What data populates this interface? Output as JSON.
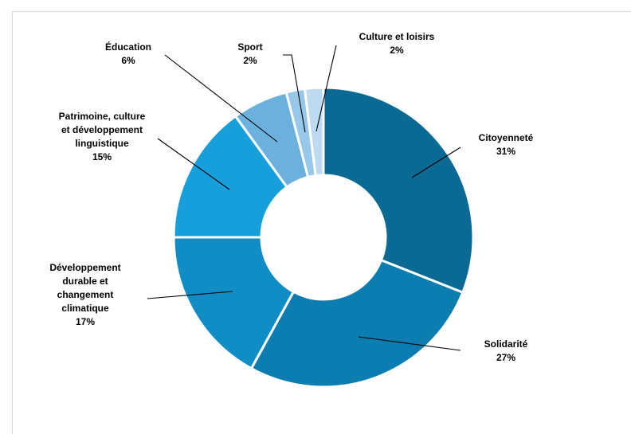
{
  "chart_data": {
    "type": "donut",
    "title": "",
    "series": [
      {
        "label": "Citoyenneté",
        "label_lines": [
          "Citoyenneté"
        ],
        "value": 31,
        "pct_text": "31%",
        "color": "#0a6a94"
      },
      {
        "label": "Solidarité",
        "label_lines": [
          "Solidarité"
        ],
        "value": 27,
        "pct_text": "27%",
        "color": "#0b7db1"
      },
      {
        "label": "Développement durable et changement climatique",
        "label_lines": [
          "Développement",
          "durable et",
          "changement",
          "climatique"
        ],
        "value": 17,
        "pct_text": "17%",
        "color": "#118dc6"
      },
      {
        "label": "Patrimoine, culture et développement linguistique",
        "label_lines": [
          "Patrimoine, culture",
          "et développement",
          "linguistique"
        ],
        "value": 15,
        "pct_text": "15%",
        "color": "#169fdb"
      },
      {
        "label": "Éducation",
        "label_lines": [
          "Éducation"
        ],
        "value": 6,
        "pct_text": "6%",
        "color": "#6cb0de"
      },
      {
        "label": "Sport",
        "label_lines": [
          "Sport"
        ],
        "value": 2,
        "pct_text": "2%",
        "color": "#97c8ea"
      },
      {
        "label": "Culture et loisirs",
        "label_lines": [
          "Culture et loisirs"
        ],
        "value": 2,
        "pct_text": "2%",
        "color": "#bcdaf0"
      }
    ],
    "legend": false,
    "data_labels": "category-and-percent-with-leader-lines"
  }
}
